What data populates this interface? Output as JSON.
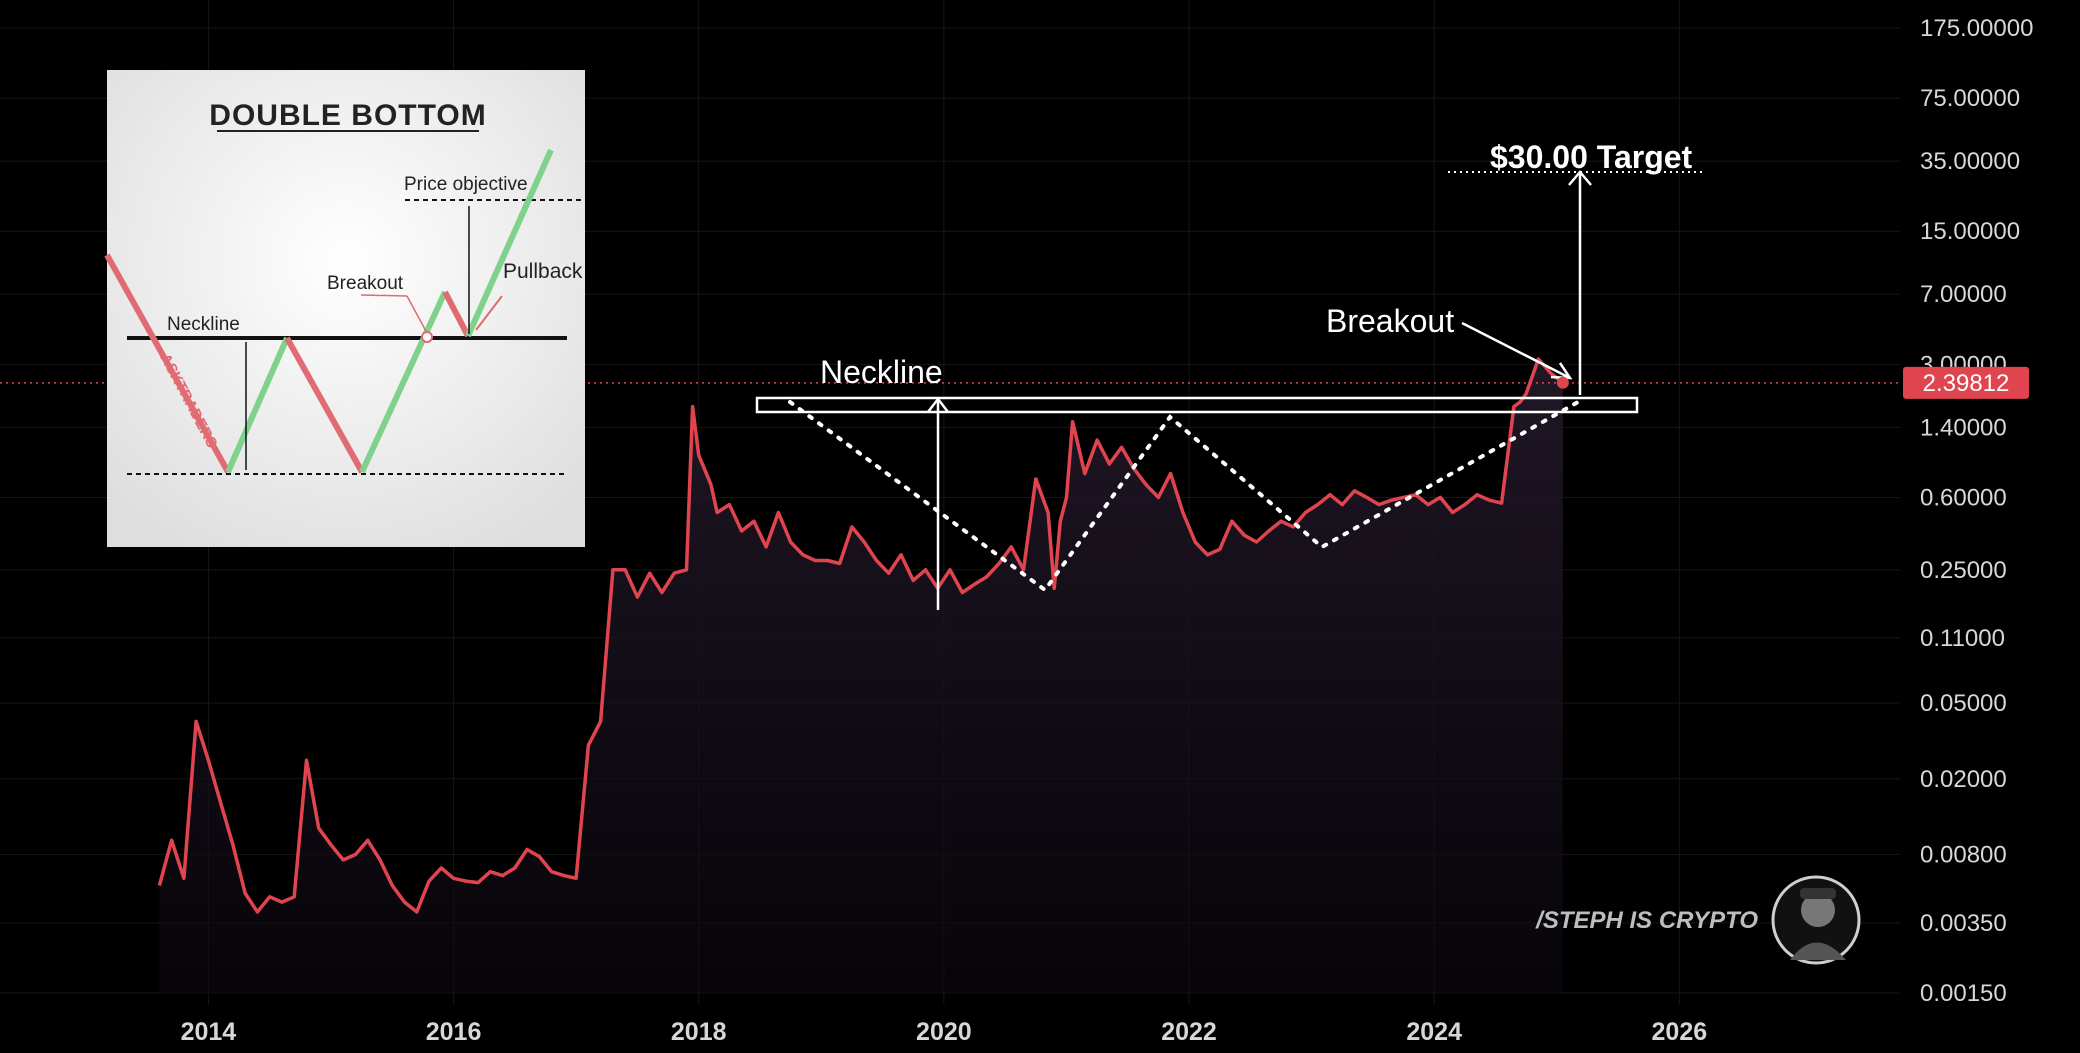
{
  "chart_data": {
    "type": "line",
    "scale": "log",
    "ylim": [
      0.0015,
      175
    ],
    "xlim": [
      2012.3,
      2027.8
    ],
    "y_ticks": [
      "175.00000",
      "75.00000",
      "35.00000",
      "15.00000",
      "7.00000",
      "3.00000",
      "1.40000",
      "0.60000",
      "0.25000",
      "0.11000",
      "0.05000",
      "0.02000",
      "0.00800",
      "0.00350",
      "0.00150"
    ],
    "x_ticks": [
      "2014",
      "2016",
      "2018",
      "2020",
      "2022",
      "2024",
      "2026"
    ],
    "current_price": "2.39812",
    "line_color": "#e0454f",
    "series": [
      {
        "x": [
          2013.6,
          2013.7,
          2013.8,
          2013.9,
          2014.0,
          2014.1,
          2014.2,
          2014.3,
          2014.4,
          2014.5,
          2014.6,
          2014.7,
          2014.8,
          2014.9,
          2015.0,
          2015.1,
          2015.2,
          2015.3,
          2015.4,
          2015.5,
          2015.6,
          2015.7,
          2015.8,
          2015.9,
          2016.0,
          2016.1,
          2016.2,
          2016.3,
          2016.4,
          2016.5,
          2016.6,
          2016.7,
          2016.8,
          2016.9,
          2017.0,
          2017.1,
          2017.2,
          2017.3,
          2017.4,
          2017.5,
          2017.6,
          2017.7,
          2017.8,
          2017.9,
          2017.95,
          2018.0,
          2018.1,
          2018.15,
          2018.25,
          2018.35,
          2018.45,
          2018.55,
          2018.65,
          2018.75,
          2018.85,
          2018.95,
          2019.05,
          2019.15,
          2019.25,
          2019.35,
          2019.45,
          2019.55,
          2019.65,
          2019.75,
          2019.85,
          2019.95,
          2020.05,
          2020.15,
          2020.25,
          2020.35,
          2020.45,
          2020.55,
          2020.65,
          2020.75,
          2020.85,
          2020.9,
          2020.95,
          2021.0,
          2021.05,
          2021.15,
          2021.25,
          2021.35,
          2021.45,
          2021.55,
          2021.65,
          2021.75,
          2021.85,
          2021.95,
          2022.05,
          2022.15,
          2022.25,
          2022.35,
          2022.45,
          2022.55,
          2022.65,
          2022.75,
          2022.85,
          2022.95,
          2023.05,
          2023.15,
          2023.25,
          2023.35,
          2023.45,
          2023.55,
          2023.65,
          2023.75,
          2023.85,
          2023.95,
          2024.05,
          2024.15,
          2024.25,
          2024.35,
          2024.45,
          2024.55,
          2024.65,
          2024.7,
          2024.75,
          2024.85,
          2024.95,
          2025.05
        ],
        "y": [
          0.0055,
          0.0095,
          0.006,
          0.04,
          0.025,
          0.015,
          0.009,
          0.005,
          0.004,
          0.0048,
          0.0045,
          0.0048,
          0.025,
          0.011,
          0.009,
          0.0075,
          0.008,
          0.0095,
          0.0075,
          0.0055,
          0.0045,
          0.004,
          0.0058,
          0.0068,
          0.006,
          0.0058,
          0.0057,
          0.0065,
          0.0062,
          0.0068,
          0.0085,
          0.0078,
          0.0065,
          0.0062,
          0.006,
          0.03,
          0.04,
          0.25,
          0.25,
          0.18,
          0.24,
          0.19,
          0.24,
          0.25,
          1.8,
          1.0,
          0.7,
          0.5,
          0.55,
          0.4,
          0.45,
          0.33,
          0.5,
          0.35,
          0.3,
          0.28,
          0.28,
          0.27,
          0.42,
          0.35,
          0.28,
          0.24,
          0.3,
          0.22,
          0.25,
          0.2,
          0.25,
          0.19,
          0.21,
          0.23,
          0.27,
          0.33,
          0.25,
          0.75,
          0.5,
          0.2,
          0.45,
          0.6,
          1.5,
          0.8,
          1.2,
          0.9,
          1.1,
          0.85,
          0.7,
          0.6,
          0.8,
          0.5,
          0.35,
          0.3,
          0.32,
          0.45,
          0.38,
          0.35,
          0.4,
          0.45,
          0.42,
          0.5,
          0.55,
          0.62,
          0.55,
          0.65,
          0.6,
          0.55,
          0.58,
          0.6,
          0.62,
          0.55,
          0.6,
          0.5,
          0.55,
          0.62,
          0.58,
          0.56,
          1.8,
          1.9,
          2.1,
          3.2,
          2.7,
          2.4
        ]
      }
    ]
  },
  "annotations": {
    "neckline": "Neckline",
    "breakout": "Breakout",
    "target": "$30.00 Target"
  },
  "inset": {
    "title": "DOUBLE BOTTOM",
    "price_objective": "Price objective",
    "breakout": "Breakout",
    "pullback": "Pullback",
    "neckline": "Neckline",
    "watermark": "ASKTRADERS"
  },
  "branding": {
    "handle": "/STEPH IS CRYPTO"
  },
  "colors": {
    "price_line": "#e0454f",
    "price_label_bg": "#e0454f",
    "inset_green": "#7fd18b",
    "inset_red": "#e06b73"
  }
}
